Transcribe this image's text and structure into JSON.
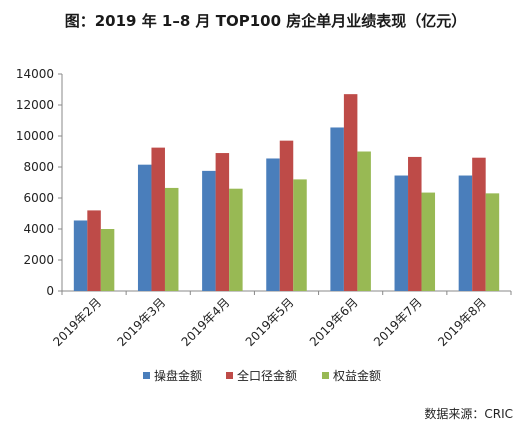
{
  "chart_data": {
    "type": "bar",
    "title": "图：2019 年 1–8 月 TOP100 房企单月业绩表现（亿元）",
    "categories": [
      "2019年2月",
      "2019年3月",
      "2019年4月",
      "2019年5月",
      "2019年6月",
      "2019年7月",
      "2019年8月"
    ],
    "series": [
      {
        "name": "操盘金额",
        "color": "#4a7ebb",
        "values": [
          4550,
          8150,
          7750,
          8550,
          10550,
          7450,
          7450
        ]
      },
      {
        "name": "全口径金额",
        "color": "#be4b48",
        "values": [
          5200,
          9250,
          8900,
          9700,
          12700,
          8650,
          8600
        ]
      },
      {
        "name": "权益金额",
        "color": "#98b954",
        "values": [
          4000,
          6650,
          6600,
          7200,
          9000,
          6350,
          6300
        ]
      }
    ],
    "yticks": [
      "0",
      "2000",
      "4000",
      "6000",
      "8000",
      "10000",
      "12000",
      "14000"
    ],
    "ylim": [
      0,
      14000
    ],
    "legend_position": "bottom",
    "grid": false,
    "source_note": "数据来源：CRIC"
  }
}
